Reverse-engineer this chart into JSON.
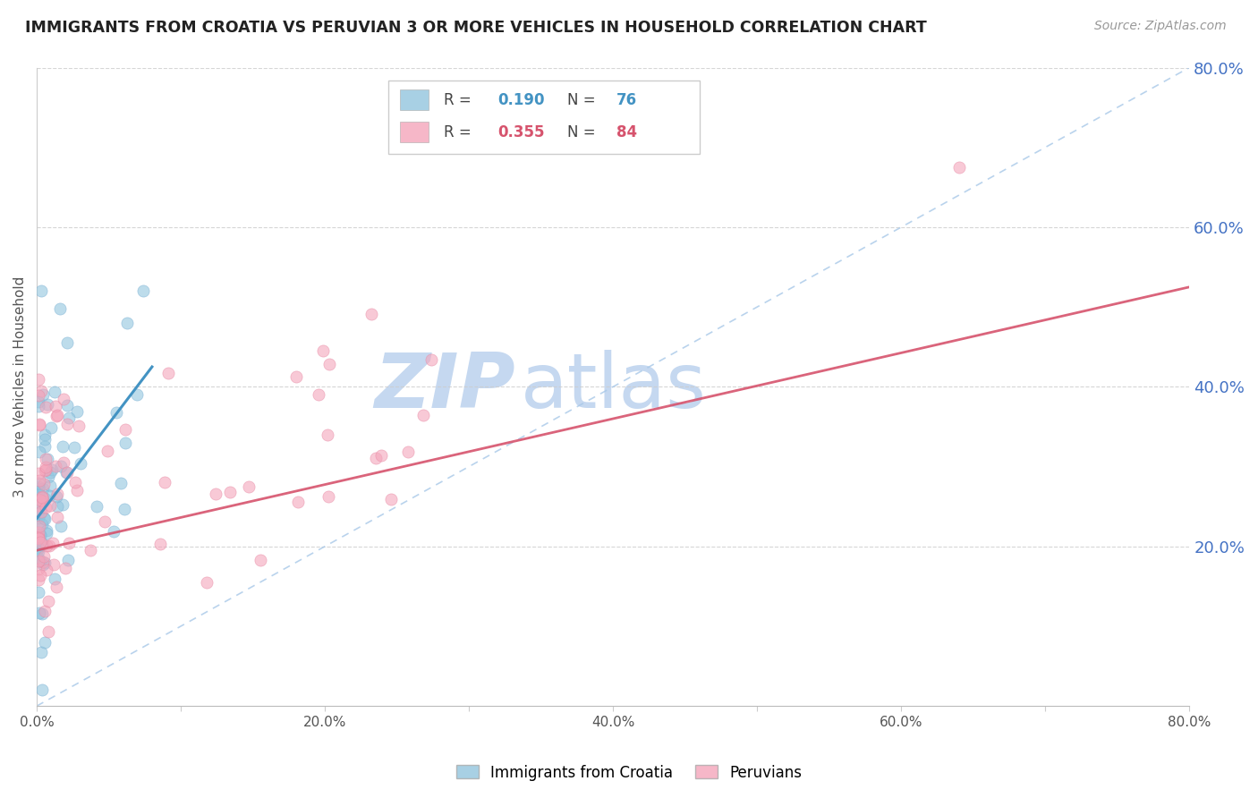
{
  "title": "IMMIGRANTS FROM CROATIA VS PERUVIAN 3 OR MORE VEHICLES IN HOUSEHOLD CORRELATION CHART",
  "source": "Source: ZipAtlas.com",
  "ylabel": "3 or more Vehicles in Household",
  "xlim": [
    0.0,
    0.8
  ],
  "ylim": [
    0.0,
    0.8
  ],
  "xticks": [
    0.0,
    0.1,
    0.2,
    0.3,
    0.4,
    0.5,
    0.6,
    0.7,
    0.8
  ],
  "yticks_right": [
    0.2,
    0.4,
    0.6,
    0.8
  ],
  "xtick_labels": [
    "0.0%",
    "",
    "20.0%",
    "",
    "40.0%",
    "",
    "60.0%",
    "",
    "80.0%"
  ],
  "ytick_labels_right": [
    "20.0%",
    "40.0%",
    "60.0%",
    "80.0%"
  ],
  "color_blue": "#92c5de",
  "color_blue_line": "#4393c3",
  "color_pink": "#f4a5bb",
  "color_pink_line": "#d6536d",
  "color_right_axis": "#4472c4",
  "color_grid": "#cccccc",
  "watermark_zip_color": "#c5d8f0",
  "watermark_atlas_color": "#c5d8f0",
  "background": "#ffffff",
  "blue_line_x0": 0.0,
  "blue_line_x1": 0.08,
  "blue_line_y0": 0.235,
  "blue_line_y1": 0.425,
  "pink_line_x0": 0.0,
  "pink_line_x1": 0.8,
  "pink_line_y0": 0.195,
  "pink_line_y1": 0.525,
  "diag_color": "#a8c8e8"
}
